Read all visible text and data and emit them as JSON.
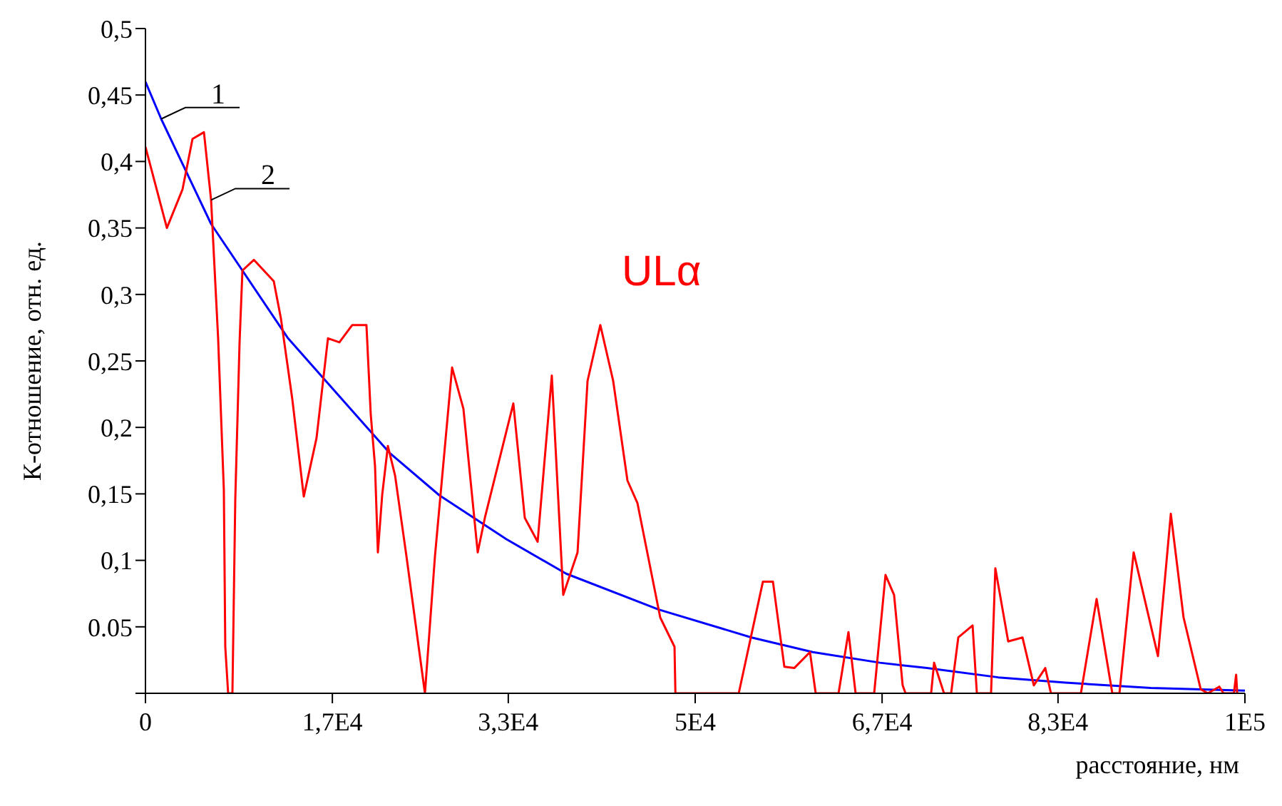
{
  "chart_data": {
    "type": "line",
    "xlabel": "расстояние, нм",
    "ylabel": "К-отношение, отн. ед.",
    "xlim": [
      0,
      100000
    ],
    "ylim": [
      0,
      0.5
    ],
    "xticks": [
      0,
      {
        "value": 17000,
        "label": "1,7E4"
      },
      {
        "value": 33000,
        "label": "3,3E4"
      },
      {
        "value": 50000,
        "label": "5E4"
      },
      {
        "value": 67000,
        "label": "6,7E4"
      },
      {
        "value": 83000,
        "label": "8,3E4"
      },
      {
        "value": 100000,
        "label": "1E5"
      }
    ],
    "yticks": [
      {
        "value": 0,
        "label": null
      },
      {
        "value": 0.05,
        "label": "0.05"
      },
      {
        "value": 0.1,
        "label": "0,1"
      },
      {
        "value": 0.15,
        "label": "0,15"
      },
      {
        "value": 0.2,
        "label": "0,2"
      },
      {
        "value": 0.25,
        "label": "0,25"
      },
      {
        "value": 0.3,
        "label": "0,3"
      },
      {
        "value": 0.35,
        "label": "0,35"
      },
      {
        "value": 0.4,
        "label": "0,4"
      },
      {
        "value": 0.45,
        "label": "0,45"
      },
      {
        "value": 0.5,
        "label": "0,5"
      }
    ],
    "grid": false,
    "marker": "none",
    "line_style": "solid",
    "series": [
      {
        "color": "#0000ff",
        "x": [
          0,
          1430,
          5970,
          12970,
          22180,
          26720,
          32810,
          38260,
          46690,
          55120,
          60700,
          66800,
          71080,
          77560,
          83660,
          91440,
          100000
        ],
        "values": [
          0.46,
          0.432,
          0.353,
          0.267,
          0.181,
          0.149,
          0.116,
          0.09,
          0.063,
          0.042,
          0.031,
          0.023,
          0.019,
          0.012,
          0.008,
          0.004,
          0.002
        ]
      },
      {
        "color": "#ff0000",
        "x": [
          0,
          1950,
          3370,
          4280,
          5320,
          5970,
          6610,
          7130,
          7260,
          7520,
          7910,
          8170,
          8560,
          8820,
          9860,
          11670,
          12320,
          13360,
          14400,
          15560,
          16600,
          17640,
          18810,
          20100,
          20490,
          20880,
          21140,
          21530,
          22050,
          22700,
          23740,
          25420,
          26330,
          27890,
          28920,
          30220,
          30870,
          33460,
          34500,
          35670,
          36960,
          38000,
          39300,
          40210,
          41370,
          42540,
          43840,
          44750,
          46820,
          48120,
          48200,
          53960,
          56160,
          57070,
          58110,
          59010,
          60440,
          60960,
          63040,
          63940,
          64590,
          66280,
          67310,
          68090,
          68870,
          69130,
          71460,
          71730,
          72630,
          73280,
          73930,
          75230,
          75620,
          76910,
          77300,
          78470,
          79770,
          80800,
          81840,
          82360,
          85080,
          86510,
          87940,
          88590,
          89880,
          92090,
          93260,
          94420,
          95980,
          96630,
          97670,
          98050,
          99000,
          99200,
          99300
        ],
        "values": [
          0.411,
          0.35,
          0.379,
          0.417,
          0.422,
          0.371,
          0.267,
          0.153,
          0.035,
          0,
          0,
          0.146,
          0.264,
          0.318,
          0.326,
          0.31,
          0.282,
          0.221,
          0.148,
          0.192,
          0.267,
          0.264,
          0.277,
          0.277,
          0.21,
          0.171,
          0.106,
          0.149,
          0.186,
          0.164,
          0.103,
          0,
          0.103,
          0.245,
          0.214,
          0.106,
          0.132,
          0.218,
          0.132,
          0.114,
          0.239,
          0.074,
          0.106,
          0.235,
          0.277,
          0.235,
          0.16,
          0.143,
          0.057,
          0.035,
          0,
          0,
          0.084,
          0.084,
          0.02,
          0.019,
          0.031,
          0,
          0,
          0.046,
          0,
          0,
          0.089,
          0.074,
          0.006,
          0,
          0,
          0.023,
          0,
          0,
          0.042,
          0.051,
          0,
          0,
          0.094,
          0.039,
          0.042,
          0.006,
          0.019,
          0,
          0,
          0.071,
          0,
          0,
          0.106,
          0.028,
          0.135,
          0.057,
          0.003,
          0,
          0.005,
          0,
          0,
          0.014,
          0
        ]
      }
    ],
    "annotations": [
      {
        "text": "1",
        "x": 1430,
        "y": 0.432
      },
      {
        "text": "2",
        "x": 5970,
        "y": 0.371
      },
      "ULα"
    ]
  }
}
